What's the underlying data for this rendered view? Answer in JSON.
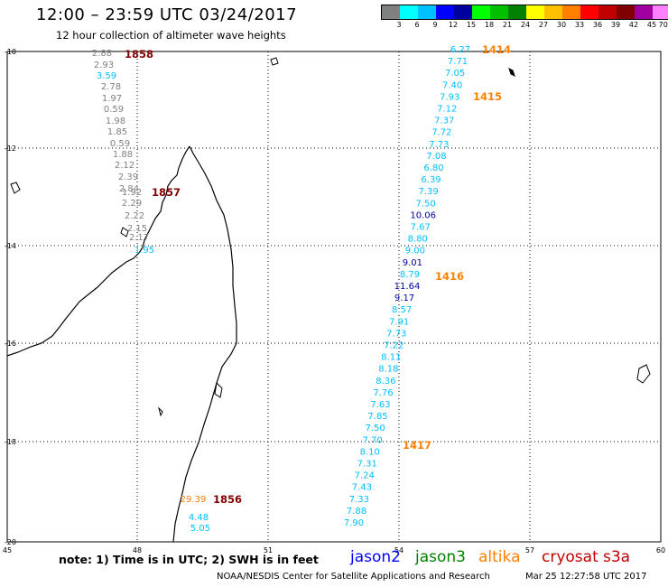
{
  "header": {
    "title": "12:00 – 23:59 UTC 03/24/2017",
    "subtitle": "12 hour collection of altimeter wave heights"
  },
  "colorbar": {
    "colors": [
      "#808080",
      "#00ffff",
      "#00bfff",
      "#0000ff",
      "#0000a0",
      "#00ff00",
      "#00c000",
      "#008000",
      "#ffff00",
      "#ffc000",
      "#ff8000",
      "#ff0000",
      "#c00000",
      "#800000",
      "#a000a0",
      "#ff80ff",
      "#000000"
    ],
    "labels": [
      "3",
      "6",
      "9",
      "12",
      "15",
      "18",
      "21",
      "24",
      "27",
      "30",
      "33",
      "36",
      "39",
      "42",
      "45",
      "70 (ft)"
    ]
  },
  "axes": {
    "lon_labels": [
      "45",
      "48",
      "51",
      "54",
      "57",
      "60"
    ],
    "lat_labels": [
      "-10",
      "-12",
      "-14",
      "-16",
      "-18",
      "-20"
    ]
  },
  "passes": [
    {
      "id": "1858",
      "satellite": "cryosat",
      "values": [
        "2.88",
        "2.93",
        "3.59",
        "2.78",
        "1.97",
        "0.59",
        "1.98",
        "1.85",
        "0.59",
        "1.88",
        "2.12",
        "2.39",
        "2.84",
        "2.29",
        "2.22",
        "2.15",
        "2.17",
        "1.95"
      ]
    },
    {
      "id": "1857",
      "satellite": "cryosat",
      "values": [
        "1.92"
      ]
    },
    {
      "id": "1856",
      "satellite": "cryosat",
      "values": []
    },
    {
      "id": "1856-altika",
      "satellite": "altika",
      "values": [
        "29.39"
      ]
    },
    {
      "id": "1856-cryo",
      "satellite": "cryosat",
      "values": [
        "4.48",
        "5.05"
      ]
    },
    {
      "id": "1414",
      "satellite": "altika",
      "values": [
        "6.27",
        "7.71",
        "7.05",
        "7.40",
        "7.93",
        "7.12",
        "7.37",
        "7.72",
        "7.73",
        "7.08",
        "6.80",
        "6.39",
        "7.39",
        "7.50",
        "10.06",
        "7.67",
        "8.80",
        "9.00",
        "9.01",
        "8.79",
        "11.64",
        "9.17",
        "8.57",
        "7.91",
        "7.73",
        "7.22",
        "8.11",
        "8.18",
        "8.36",
        "7.76",
        "7.63",
        "7.85",
        "7.50",
        "7.70",
        "8.10",
        "7.31",
        "7.24",
        "7.43",
        "7.33",
        "7.88",
        "7.90"
      ]
    },
    {
      "id": "1415",
      "satellite": "altika",
      "values": []
    },
    {
      "id": "1416",
      "satellite": "altika",
      "values": []
    },
    {
      "id": "1417",
      "satellite": "altika",
      "values": []
    }
  ],
  "footer": {
    "note": "note:  1) Time is in UTC;  2) SWH is in feet",
    "satellites": [
      {
        "name": "jason2",
        "color": "#0000ff"
      },
      {
        "name": "jason3",
        "color": "#008000"
      },
      {
        "name": "altika",
        "color": "#ff8000"
      },
      {
        "name": "cryosat",
        "color": "#c00000"
      },
      {
        "name": "s3a",
        "color": "#c00000"
      }
    ],
    "credit": "NOAA/NESDIS Center for Satellite Applications and Research",
    "timestamp": "Mar 25 12:27:58 UTC 2017"
  }
}
